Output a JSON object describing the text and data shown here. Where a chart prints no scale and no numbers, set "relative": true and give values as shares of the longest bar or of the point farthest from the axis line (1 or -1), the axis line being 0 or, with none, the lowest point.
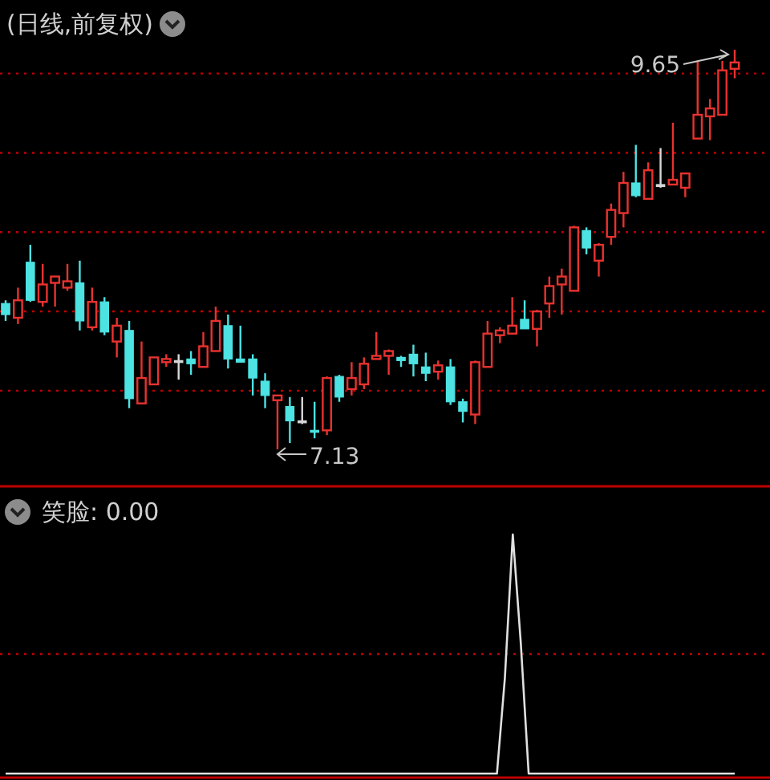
{
  "chart_data": [
    {
      "type": "candlestick",
      "title": "(日线,前复权)",
      "categories": [
        null,
        null,
        null,
        null,
        null,
        null,
        null,
        null,
        null,
        null,
        null,
        null,
        null,
        null,
        null,
        null,
        null,
        null,
        null,
        null,
        null,
        null,
        null,
        null,
        null,
        null,
        null,
        null,
        null,
        null,
        null,
        null,
        null,
        null,
        null,
        null,
        null,
        null,
        null,
        null,
        null,
        null,
        null,
        null,
        null,
        null,
        null,
        null,
        null,
        null,
        null,
        null,
        null,
        null,
        null,
        null,
        null,
        null,
        null,
        null
      ],
      "ohlc": [
        [
          8.05,
          8.07,
          7.94,
          7.98
        ],
        [
          7.96,
          8.15,
          7.92,
          8.07
        ],
        [
          8.31,
          8.42,
          8.06,
          8.07
        ],
        [
          8.06,
          8.3,
          8.03,
          8.17
        ],
        [
          8.18,
          8.22,
          8.03,
          8.22
        ],
        [
          8.15,
          8.3,
          8.13,
          8.19
        ],
        [
          8.18,
          8.32,
          7.88,
          7.94
        ],
        [
          7.9,
          8.15,
          7.88,
          8.06
        ],
        [
          8.06,
          8.09,
          7.85,
          7.87
        ],
        [
          7.81,
          7.96,
          7.71,
          7.91
        ],
        [
          7.88,
          7.94,
          7.39,
          7.45
        ],
        [
          7.42,
          7.81,
          7.42,
          7.58
        ],
        [
          7.54,
          7.71,
          7.54,
          7.71
        ],
        [
          7.68,
          7.73,
          7.65,
          7.7
        ],
        [
          7.69,
          7.73,
          7.57,
          7.69
        ],
        [
          7.7,
          7.75,
          7.6,
          7.67
        ],
        [
          7.65,
          7.87,
          7.65,
          7.78
        ],
        [
          7.75,
          8.03,
          7.75,
          7.94
        ],
        [
          7.91,
          7.98,
          7.64,
          7.7
        ],
        [
          7.7,
          7.91,
          7.68,
          7.68
        ],
        [
          7.7,
          7.73,
          7.47,
          7.58
        ],
        [
          7.56,
          7.61,
          7.39,
          7.47
        ],
        [
          7.44,
          7.47,
          7.13,
          7.47
        ],
        [
          7.4,
          7.46,
          7.17,
          7.31
        ],
        [
          7.31,
          7.46,
          7.29,
          7.31
        ],
        [
          7.25,
          7.43,
          7.2,
          7.24
        ],
        [
          7.25,
          7.59,
          7.22,
          7.58
        ],
        [
          7.59,
          7.6,
          7.43,
          7.46
        ],
        [
          7.51,
          7.68,
          7.47,
          7.58
        ],
        [
          7.54,
          7.71,
          7.51,
          7.67
        ],
        [
          7.7,
          7.87,
          7.7,
          7.72
        ],
        [
          7.72,
          7.76,
          7.6,
          7.75
        ],
        [
          7.71,
          7.72,
          7.65,
          7.69
        ],
        [
          7.73,
          7.79,
          7.59,
          7.67
        ],
        [
          7.65,
          7.74,
          7.56,
          7.61
        ],
        [
          7.62,
          7.69,
          7.57,
          7.66
        ],
        [
          7.65,
          7.7,
          7.41,
          7.43
        ],
        [
          7.43,
          7.45,
          7.3,
          7.37
        ],
        [
          7.35,
          7.69,
          7.29,
          7.68
        ],
        [
          7.65,
          7.94,
          7.65,
          7.86
        ],
        [
          7.85,
          7.9,
          7.8,
          7.88
        ],
        [
          7.86,
          8.09,
          7.86,
          7.91
        ],
        [
          7.95,
          8.07,
          7.89,
          7.89
        ],
        [
          7.89,
          8.01,
          7.78,
          8.0
        ],
        [
          8.05,
          8.22,
          7.96,
          8.16
        ],
        [
          8.17,
          8.27,
          7.98,
          8.22
        ],
        [
          8.13,
          8.54,
          8.13,
          8.53
        ],
        [
          8.51,
          8.53,
          8.36,
          8.4
        ],
        [
          8.32,
          8.43,
          8.22,
          8.42
        ],
        [
          8.47,
          8.68,
          8.42,
          8.64
        ],
        [
          8.62,
          8.88,
          8.53,
          8.81
        ],
        [
          8.81,
          9.05,
          8.72,
          8.73
        ],
        [
          8.71,
          8.94,
          8.71,
          8.89
        ],
        [
          8.8,
          9.03,
          8.78,
          8.8
        ],
        [
          8.8,
          9.19,
          8.8,
          8.83
        ],
        [
          8.78,
          8.87,
          8.72,
          8.87
        ],
        [
          9.09,
          9.58,
          9.09,
          9.24
        ],
        [
          9.23,
          9.34,
          9.08,
          9.28
        ],
        [
          9.24,
          9.58,
          9.24,
          9.52
        ],
        [
          9.53,
          9.65,
          9.47,
          9.57
        ]
      ],
      "colors": [
        "#4de3e3",
        "#e8322f",
        "#4de3e3",
        "#e8322f",
        "#e8322f",
        "#e8322f",
        "#4de3e3",
        "#e8322f",
        "#4de3e3",
        "#e8322f",
        "#4de3e3",
        "#e8322f",
        "#e8322f",
        "#e8322f",
        "#d8d8d8",
        "#4de3e3",
        "#e8322f",
        "#e8322f",
        "#4de3e3",
        "#4de3e3",
        "#4de3e3",
        "#4de3e3",
        "#e8322f",
        "#4de3e3",
        "#d8d8d8",
        "#4de3e3",
        "#e8322f",
        "#4de3e3",
        "#e8322f",
        "#e8322f",
        "#e8322f",
        "#e8322f",
        "#4de3e3",
        "#4de3e3",
        "#4de3e3",
        "#e8322f",
        "#4de3e3",
        "#4de3e3",
        "#e8322f",
        "#e8322f",
        "#e8322f",
        "#e8322f",
        "#4de3e3",
        "#e8322f",
        "#e8322f",
        "#e8322f",
        "#e8322f",
        "#4de3e3",
        "#e8322f",
        "#e8322f",
        "#e8322f",
        "#4de3e3",
        "#e8322f",
        "#d8d8d8",
        "#e8322f",
        "#e8322f",
        "#e8322f",
        "#e8322f",
        "#e8322f",
        "#e8322f"
      ],
      "annotations": [
        "9.65",
        "7.13"
      ],
      "ref_lines": [
        {
          "axis": "y",
          "value": 9.5,
          "color": "#c00000",
          "line_style": "dotted"
        },
        {
          "axis": "y",
          "value": 9.0,
          "color": "#c00000",
          "line_style": "dotted"
        },
        {
          "axis": "y",
          "value": 8.5,
          "color": "#c00000",
          "line_style": "dotted"
        },
        {
          "axis": "y",
          "value": 8.0,
          "color": "#c00000",
          "line_style": "dotted"
        },
        {
          "axis": "y",
          "value": 7.5,
          "color": "#c00000",
          "line_style": "dotted"
        }
      ]
    },
    {
      "type": "line",
      "title": "笑脸: 0.00",
      "relative": true,
      "color": "#e0e0e0",
      "categories": [
        null,
        null,
        null,
        null,
        null,
        null,
        null,
        null,
        null,
        null,
        null,
        null,
        null,
        null,
        null,
        null,
        null,
        null,
        null,
        null,
        null,
        null,
        null,
        null,
        null,
        null,
        null,
        null,
        null,
        null,
        null,
        null,
        null,
        null,
        null,
        null,
        null,
        null,
        null,
        null,
        null,
        null,
        null,
        null,
        null,
        null,
        null,
        null,
        null,
        null,
        null,
        null,
        null,
        null,
        null,
        null,
        null,
        null,
        null,
        null,
        null,
        null,
        null,
        null,
        null,
        null,
        null,
        null,
        null,
        null,
        null,
        null,
        null,
        null,
        null,
        null,
        null,
        null,
        null,
        null,
        null,
        null,
        null,
        null,
        null,
        null,
        null,
        null,
        null,
        null,
        null,
        null,
        null
      ],
      "values": [
        0,
        0,
        0,
        0,
        0,
        0,
        0,
        0,
        0,
        0,
        0,
        0,
        0,
        0,
        0,
        0,
        0,
        0,
        0,
        0,
        0,
        0,
        0,
        0,
        0,
        0,
        0,
        0,
        0,
        0,
        0,
        0,
        0,
        0,
        0,
        0,
        0,
        0,
        0,
        0,
        0,
        0,
        0,
        0,
        0,
        0,
        0,
        0,
        0,
        0,
        0,
        0,
        0,
        0,
        0,
        0,
        0,
        0,
        0,
        0,
        0,
        0,
        0,
        0.4,
        1,
        0.55,
        0,
        0,
        0,
        0,
        0,
        0,
        0,
        0,
        0,
        0,
        0,
        0,
        0,
        0,
        0,
        0,
        0,
        0,
        0,
        0,
        0,
        0,
        0,
        0,
        0,
        0,
        0
      ],
      "ref_lines": [
        {
          "axis": "y",
          "value": 0.5,
          "color": "#c00000",
          "line_style": "dotted"
        }
      ]
    }
  ]
}
